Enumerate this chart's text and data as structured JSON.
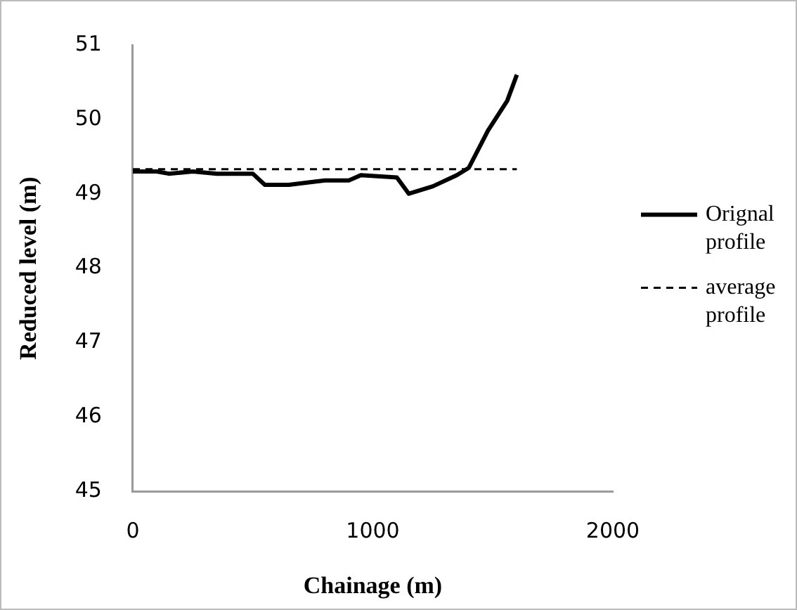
{
  "chart_data": {
    "type": "line",
    "xlabel": "Chainage (m)",
    "ylabel": "Reduced level (m)",
    "xlim": [
      0,
      2000
    ],
    "xticks": [
      0,
      1000,
      2000
    ],
    "ylim": [
      45,
      51
    ],
    "yticks": [
      45,
      46,
      47,
      48,
      49,
      50,
      51
    ],
    "grid": false,
    "legend": "right",
    "marker": "none",
    "series": [
      {
        "name": "Orignal profile",
        "color": "#000000",
        "line_style": "solid",
        "x": [
          0,
          100,
          150,
          250,
          350,
          500,
          550,
          650,
          800,
          900,
          950,
          1100,
          1150,
          1250,
          1350,
          1400,
          1480,
          1560,
          1600
        ],
        "values": [
          49.3,
          49.3,
          49.27,
          49.3,
          49.27,
          49.27,
          49.12,
          49.12,
          49.18,
          49.18,
          49.25,
          49.22,
          49.0,
          49.1,
          49.25,
          49.35,
          49.85,
          50.25,
          50.6
        ]
      },
      {
        "name": "average profile",
        "color": "#000000",
        "line_style": "dashed",
        "x": [
          0,
          1600
        ],
        "values": [
          49.33,
          49.33
        ]
      }
    ]
  }
}
